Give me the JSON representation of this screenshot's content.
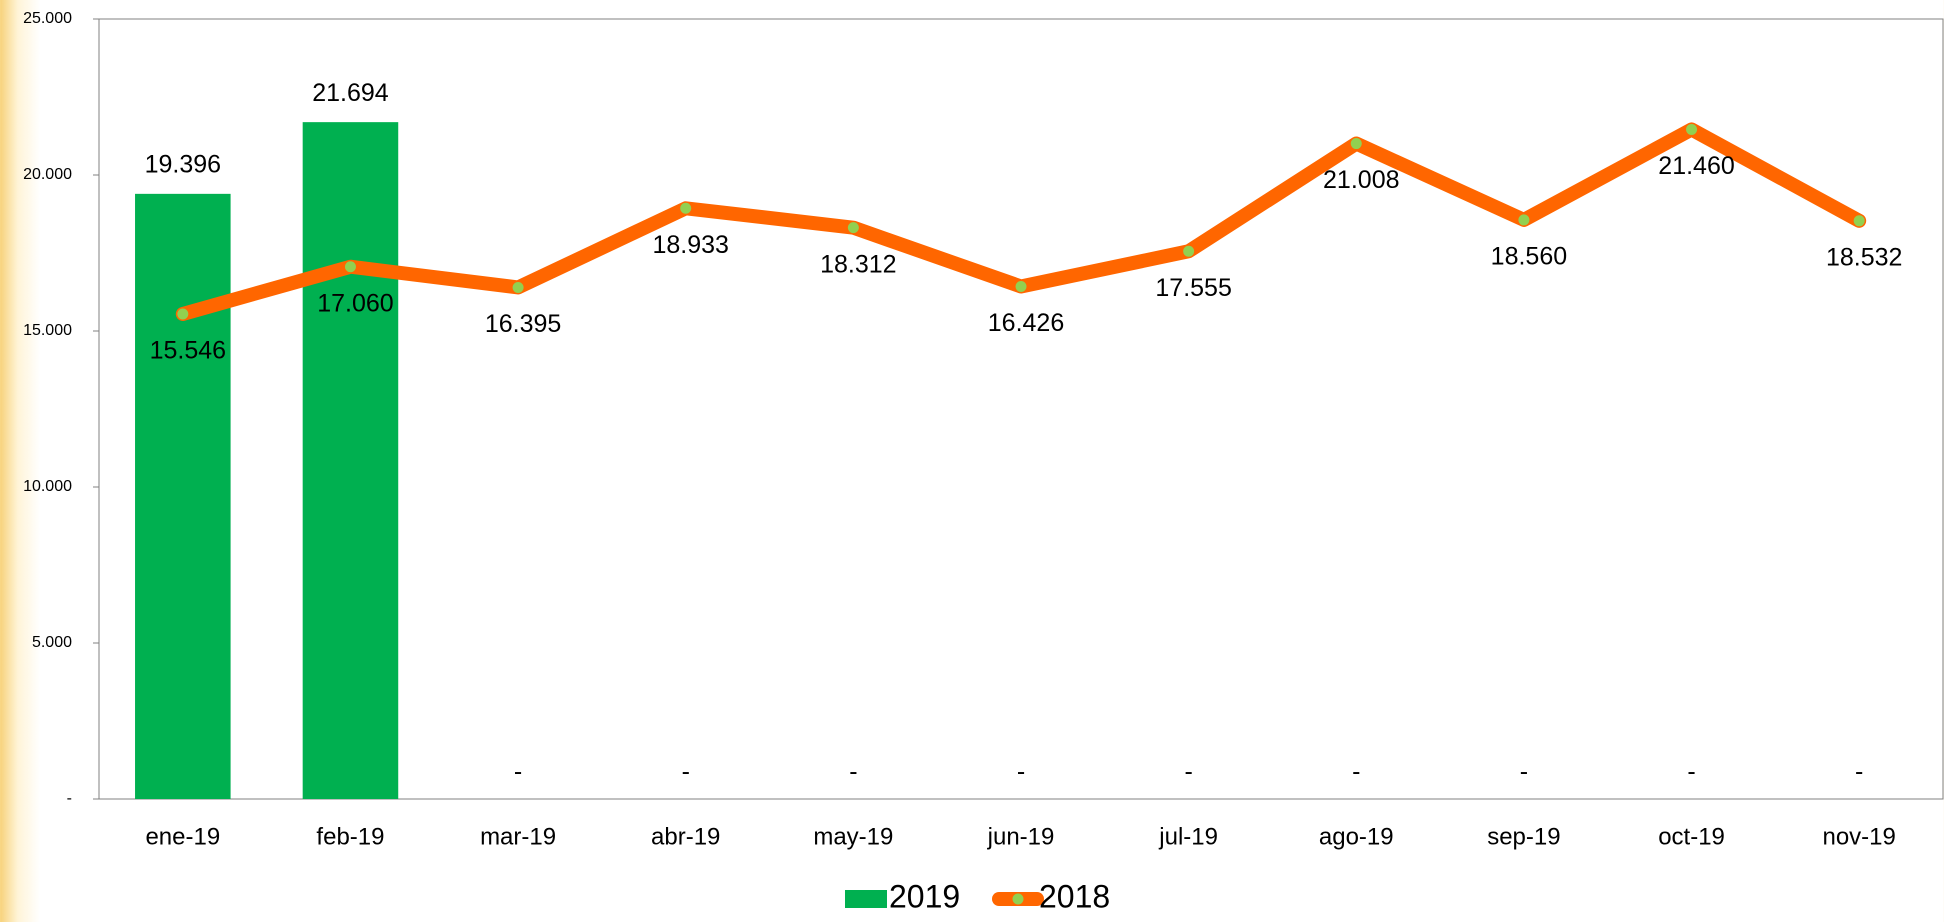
{
  "chart_data": {
    "type": "bar-line",
    "categories": [
      "ene-19",
      "feb-19",
      "mar-19",
      "abr-19",
      "may-19",
      "jun-19",
      "jul-19",
      "ago-19",
      "sep-19",
      "oct-19",
      "nov-19"
    ],
    "series": [
      {
        "name": "2019",
        "type": "bar",
        "color": "#00b050",
        "values": [
          19396,
          21694,
          0,
          0,
          0,
          0,
          0,
          0,
          0,
          0,
          0
        ],
        "value_labels": [
          "19.396",
          "21.694",
          "-",
          "-",
          "-",
          "-",
          "-",
          "-",
          "-",
          "-",
          "-"
        ]
      },
      {
        "name": "2018",
        "type": "line",
        "color": "#ff6600",
        "marker_color": "#92d050",
        "values": [
          15546,
          17060,
          16395,
          18933,
          18312,
          16426,
          17555,
          21008,
          18560,
          21460,
          18532
        ],
        "value_labels": [
          "15.546",
          "17.060",
          "16.395",
          "18.933",
          "18.312",
          "16.426",
          "17.555",
          "21.008",
          "18.560",
          "21.460",
          "18.532"
        ]
      }
    ],
    "ylim": [
      0,
      25000
    ],
    "yticks": [
      {
        "value": 0,
        "label": "-"
      },
      {
        "value": 5000,
        "label": "5.000"
      },
      {
        "value": 10000,
        "label": "10.000"
      },
      {
        "value": 15000,
        "label": "15.000"
      },
      {
        "value": 20000,
        "label": "20.000"
      },
      {
        "value": 25000,
        "label": "25.000"
      }
    ],
    "grid": false,
    "legend": "bottom"
  }
}
